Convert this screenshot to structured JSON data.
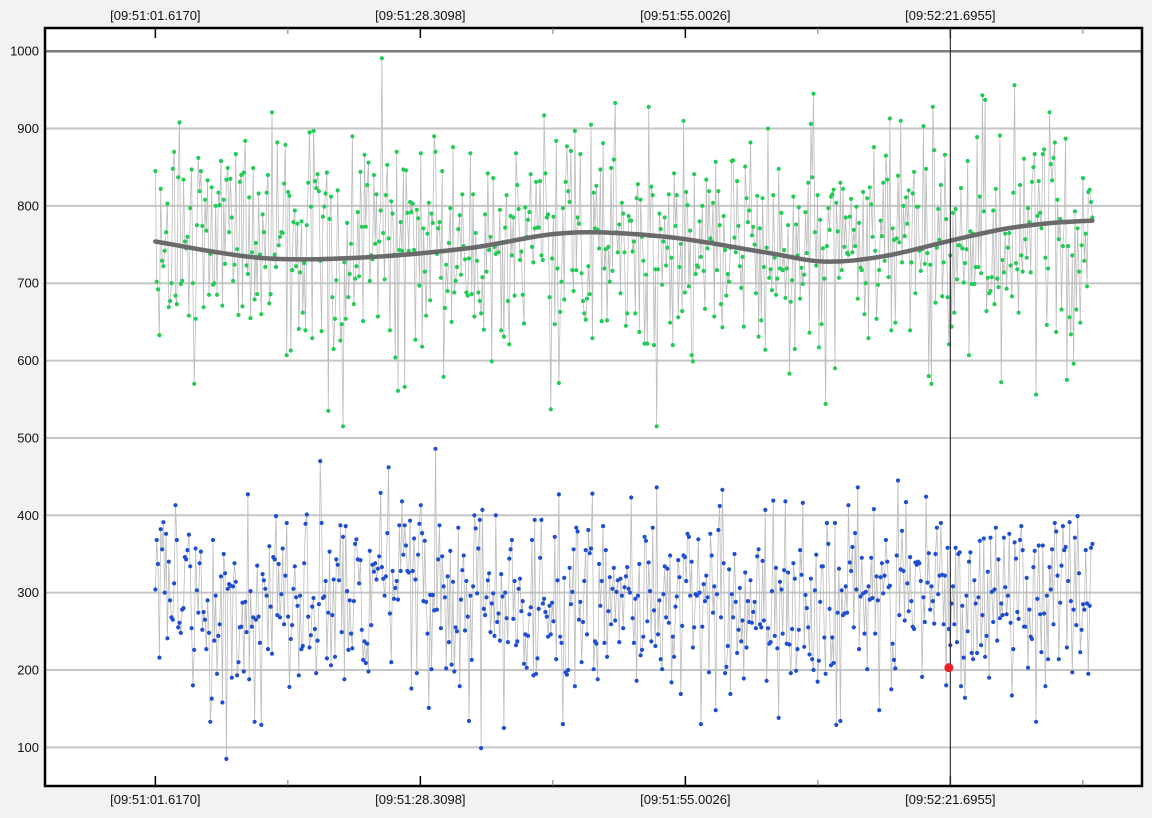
{
  "chart_data": {
    "type": "scatter",
    "title": "",
    "xlabel": "",
    "ylabel": "",
    "x_tick_labels": [
      "[09:51:01.6170]",
      "[09:51:28.3098]",
      "[09:51:55.0026]",
      "[09:52:21.6955]"
    ],
    "x_tick_seconds": [
      1.617,
      28.3098,
      55.0026,
      81.6955
    ],
    "xlim_seconds": [
      -9.5,
      101.0
    ],
    "ylim": [
      50,
      1030
    ],
    "y_ticks": [
      100,
      200,
      300,
      400,
      500,
      600,
      700,
      800,
      900,
      1000
    ],
    "grid": true,
    "cursor": {
      "x_seconds": 81.6955
    },
    "selected_point": {
      "x_seconds": 81.6955,
      "y": 203,
      "color": "#e8202a"
    },
    "series": [
      {
        "points": "green",
        "color": "#22cc55",
        "count": 700,
        "x_range_seconds": [
          1.617,
          96.0
        ],
        "y_center": 750,
        "y_range": [
          515,
          1010
        ]
      },
      {
        "points": "blue",
        "color": "#1f4fd1",
        "count": 700,
        "x_range_seconds": [
          1.617,
          96.0
        ],
        "y_center": 290,
        "y_range": [
          82,
          515
        ]
      },
      {
        "points": "trend",
        "color": "#6a6a6a",
        "x": [
          1.617,
          12,
          22,
          33,
          43,
          53,
          63,
          69,
          75,
          81.7,
          87,
          92,
          96
        ],
        "y": [
          754,
          733,
          733,
          745,
          765,
          760,
          740,
          728,
          735,
          755,
          770,
          778,
          781
        ]
      }
    ]
  }
}
